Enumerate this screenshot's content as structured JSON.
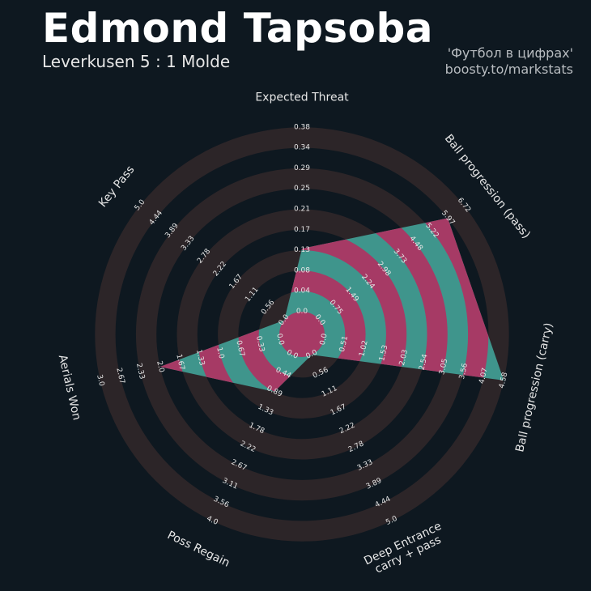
{
  "header": {
    "title": "Edmond Tapsoba",
    "subtitle": "Leverkusen 5 : 1 Molde",
    "credit_line1": "'Футбол в цифрах'",
    "credit_line2": "boosty.to/markstats"
  },
  "colors": {
    "background": "#0e1820",
    "ring_band": "#2c2528",
    "fill_teal": "#3f958c",
    "fill_magenta": "#a63a65"
  },
  "chart_data": {
    "type": "radar",
    "title": "Edmond Tapsoba",
    "subtitle": "Leverkusen 5 : 1 Molde",
    "axes": [
      {
        "label": "Expected Threat",
        "value": 0.13,
        "ticks": [
          "0.0",
          "0.04",
          "0.08",
          "0.13",
          "0.17",
          "0.21",
          "0.25",
          "0.29",
          "0.34",
          "0.38"
        ],
        "range": [
          0,
          0.38
        ]
      },
      {
        "label": "Ball progression (pass)",
        "value": 5.97,
        "ticks": [
          "0.0",
          "0.75",
          "1.49",
          "2.24",
          "2.98",
          "3.73",
          "4.48",
          "5.22",
          "5.97",
          "6.72"
        ],
        "range": [
          0,
          6.72
        ]
      },
      {
        "label": "Ball progression (carry)",
        "value": 4.58,
        "ticks": [
          "0.0",
          "0.51",
          "1.02",
          "1.53",
          "2.03",
          "2.54",
          "3.05",
          "3.56",
          "4.07",
          "4.58"
        ],
        "range": [
          0,
          4.58
        ]
      },
      {
        "label": "Deep Entrance\ncarry + pass",
        "value": 0.0,
        "ticks": [
          "0.0",
          "0.56",
          "1.11",
          "1.67",
          "2.22",
          "2.78",
          "3.33",
          "3.89",
          "4.44",
          "5.0"
        ],
        "range": [
          0,
          5.0
        ]
      },
      {
        "label": "Poss Regain",
        "value": 0.89,
        "ticks": [
          "0.0",
          "0.44",
          "0.89",
          "1.33",
          "1.78",
          "2.22",
          "2.67",
          "3.11",
          "3.56",
          "4.0"
        ],
        "range": [
          0,
          4.0
        ]
      },
      {
        "label": "Aerials Won",
        "value": 2.0,
        "ticks": [
          "0.0",
          "0.33",
          "0.67",
          "1.0",
          "1.33",
          "1.67",
          "2.0",
          "2.33",
          "2.67",
          "3.0"
        ],
        "range": [
          0,
          3.0
        ]
      },
      {
        "label": "Key Pass",
        "value": 0.0,
        "ticks": [
          "0.0",
          "0.56",
          "1.11",
          "1.67",
          "2.22",
          "2.78",
          "3.33",
          "3.89",
          "4.44",
          "5.0"
        ],
        "range": [
          0,
          5.0
        ]
      }
    ]
  }
}
